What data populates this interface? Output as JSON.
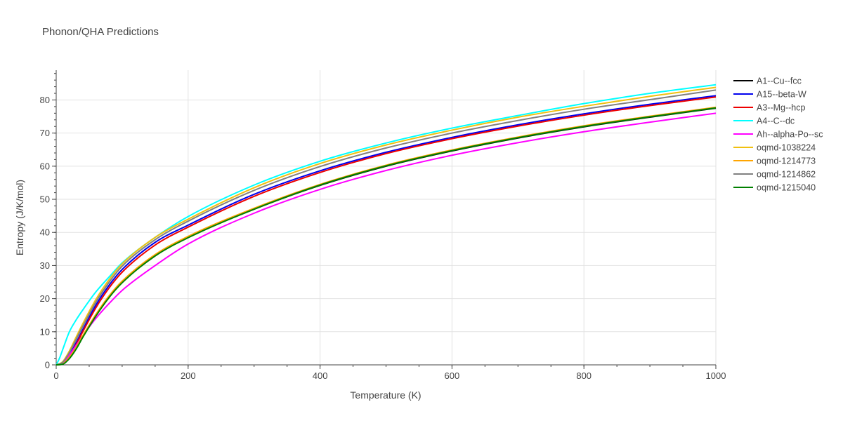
{
  "chart_data": {
    "type": "line",
    "title": "Phonon/QHA Predictions",
    "xlabel": "Temperature (K)",
    "ylabel": "Entropy (J/K/mol)",
    "xlim": [
      0,
      1000
    ],
    "ylim": [
      0,
      89
    ],
    "x_ticks": [
      0,
      200,
      400,
      600,
      800,
      1000
    ],
    "y_ticks": [
      0,
      10,
      20,
      30,
      40,
      50,
      60,
      70,
      80
    ],
    "grid": true,
    "legend_position": "right",
    "series": [
      {
        "name": "A1--Cu--fcc",
        "color": "#000000",
        "x": [
          0,
          10,
          20,
          30,
          40,
          60,
          80,
          100,
          150,
          200,
          300,
          400,
          500,
          600,
          700,
          800,
          900,
          1000
        ],
        "y": [
          0,
          0.3,
          2.2,
          5.0,
          8.5,
          15.0,
          20.5,
          25.0,
          33.0,
          38.5,
          47.0,
          54.2,
          60.0,
          64.6,
          68.5,
          71.9,
          74.8,
          77.5
        ]
      },
      {
        "name": "A15--beta-W",
        "color": "#0000ee",
        "x": [
          0,
          10,
          20,
          30,
          40,
          60,
          80,
          100,
          150,
          200,
          300,
          400,
          500,
          600,
          700,
          800,
          900,
          1000
        ],
        "y": [
          0,
          0.6,
          3.0,
          6.6,
          10.5,
          18.0,
          24.0,
          28.8,
          37.0,
          42.2,
          51.5,
          58.6,
          64.2,
          68.7,
          72.5,
          75.8,
          78.7,
          81.3
        ]
      },
      {
        "name": "A3--Mg--hcp",
        "color": "#ee0000",
        "x": [
          0,
          10,
          20,
          30,
          40,
          60,
          80,
          100,
          150,
          200,
          300,
          400,
          500,
          600,
          700,
          800,
          900,
          1000
        ],
        "y": [
          0,
          0.5,
          2.7,
          6.1,
          9.9,
          17.2,
          23.2,
          28.0,
          36.2,
          41.6,
          50.9,
          58.1,
          63.8,
          68.3,
          72.1,
          75.4,
          78.3,
          80.9
        ]
      },
      {
        "name": "A4--C--dc",
        "color": "#00ffff",
        "x": [
          0,
          5,
          10,
          20,
          30,
          40,
          60,
          80,
          100,
          150,
          200,
          300,
          400,
          500,
          600,
          700,
          800,
          900,
          1000
        ],
        "y": [
          0,
          2.0,
          4.7,
          10.0,
          13.5,
          16.5,
          22.0,
          26.5,
          30.8,
          38.5,
          44.8,
          54.3,
          61.5,
          67.0,
          71.5,
          75.3,
          78.9,
          82.0,
          84.6
        ]
      },
      {
        "name": "Ah--alpha-Po--sc",
        "color": "#ff00ff",
        "x": [
          0,
          10,
          20,
          30,
          40,
          60,
          80,
          100,
          150,
          200,
          300,
          400,
          500,
          600,
          700,
          800,
          900,
          1000
        ],
        "y": [
          0,
          0.7,
          3.0,
          5.8,
          8.7,
          14.0,
          18.5,
          22.5,
          30.0,
          36.5,
          45.8,
          53.0,
          58.7,
          63.3,
          67.1,
          70.4,
          73.3,
          76.0
        ]
      },
      {
        "name": "oqmd-1038224",
        "color": "#f0c010",
        "x": [
          0,
          10,
          20,
          30,
          40,
          60,
          80,
          100,
          150,
          200,
          300,
          400,
          500,
          600,
          700,
          800,
          900,
          1000
        ],
        "y": [
          0,
          1.0,
          4.2,
          8.3,
          12.3,
          19.7,
          25.7,
          30.5,
          38.5,
          44.0,
          53.5,
          60.8,
          66.4,
          70.9,
          74.8,
          78.1,
          81.1,
          83.8
        ]
      },
      {
        "name": "oqmd-1214773",
        "color": "#ffa500",
        "x": [
          0,
          10,
          20,
          30,
          40,
          60,
          80,
          100,
          150,
          200,
          300,
          400,
          500,
          600,
          700,
          800,
          900,
          1000
        ],
        "y": [
          0,
          0.3,
          2.3,
          5.2,
          8.7,
          15.2,
          20.8,
          25.3,
          33.3,
          38.8,
          47.3,
          54.5,
          60.3,
          64.9,
          68.8,
          72.2,
          75.1,
          77.8
        ]
      },
      {
        "name": "oqmd-1214862",
        "color": "#808080",
        "x": [
          0,
          10,
          20,
          30,
          40,
          60,
          80,
          100,
          150,
          200,
          300,
          400,
          500,
          600,
          700,
          800,
          900,
          1000
        ],
        "y": [
          0,
          0.8,
          3.7,
          7.6,
          11.5,
          18.9,
          24.9,
          29.8,
          37.8,
          43.4,
          52.7,
          59.9,
          65.5,
          70.0,
          73.8,
          77.2,
          80.1,
          83.0
        ]
      },
      {
        "name": "oqmd-1215040",
        "color": "#008000",
        "x": [
          0,
          10,
          20,
          30,
          40,
          60,
          80,
          100,
          150,
          200,
          300,
          400,
          500,
          600,
          700,
          800,
          900,
          1000
        ],
        "y": [
          0,
          0.2,
          1.9,
          4.7,
          8.2,
          14.7,
          20.3,
          24.8,
          32.9,
          38.4,
          47.0,
          54.3,
          60.1,
          64.7,
          68.6,
          72.0,
          74.9,
          77.6
        ]
      }
    ]
  }
}
